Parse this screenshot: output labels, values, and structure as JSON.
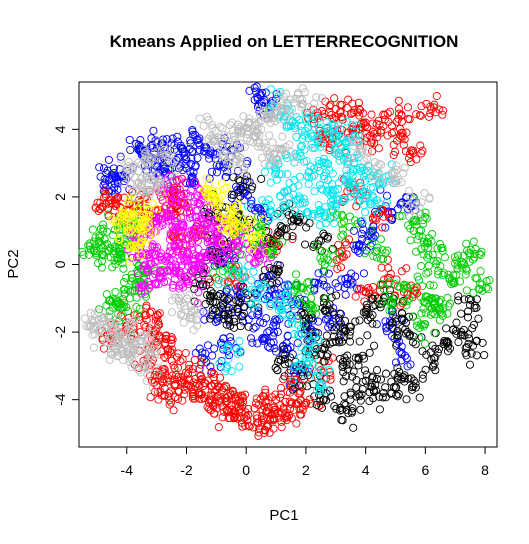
{
  "chart_data": {
    "type": "scatter",
    "title": "Kmeans Applied on LETTERRECOGNITION",
    "xlabel": "PC1",
    "ylabel": "PC2",
    "xlim": [
      -5.6,
      8.4
    ],
    "ylim": [
      -5.4,
      5.4
    ],
    "x_ticks": [
      "-4",
      "-2",
      "0",
      "2",
      "4",
      "6",
      "8"
    ],
    "y_ticks": [
      "-4",
      "-2",
      "0",
      "2",
      "4"
    ],
    "x_tick_values": [
      -4,
      -2,
      0,
      2,
      4,
      6,
      8
    ],
    "y_tick_values": [
      -4,
      -2,
      0,
      2,
      4
    ],
    "marker": "open-circle",
    "legend": "none",
    "grid": false,
    "series": [
      {
        "color": "#0000FF",
        "points": [
          [
            -4.6,
            2.5
          ],
          [
            -4.4,
            2.4
          ],
          [
            -4.2,
            2.6
          ],
          [
            -3.5,
            3.3
          ],
          [
            -3.2,
            3.5
          ],
          [
            -2.8,
            3.6
          ],
          [
            -2.4,
            3.4
          ],
          [
            -2,
            3.1
          ],
          [
            -1.6,
            3.6
          ],
          [
            -1.2,
            3.3
          ],
          [
            -0.9,
            2.9
          ],
          [
            -0.5,
            3.4
          ],
          [
            -2.6,
            2.8
          ],
          [
            -3,
            2.9
          ],
          [
            -1.8,
            2.6
          ],
          [
            0.5,
            5
          ],
          [
            0.6,
            4.8
          ],
          [
            -0.3,
            -0.8
          ],
          [
            0.2,
            -1.5
          ],
          [
            0.6,
            -2.2
          ],
          [
            1,
            -1.8
          ],
          [
            1.4,
            -2.5
          ],
          [
            1.8,
            -1.2
          ],
          [
            2.2,
            -2
          ],
          [
            -0.6,
            -2.4
          ],
          [
            -1,
            -1.6
          ],
          [
            0.8,
            -0.6
          ],
          [
            1.2,
            -0.9
          ],
          [
            2.6,
            -0.6
          ],
          [
            3,
            -1.6
          ],
          [
            3.4,
            -0.4
          ],
          [
            3.8,
            0.6
          ],
          [
            4.2,
            1
          ],
          [
            4.6,
            1.6
          ],
          [
            4.8,
            -1.8
          ],
          [
            5.2,
            -2.6
          ],
          [
            5.4,
            1.8
          ],
          [
            -0.2,
            2.2
          ],
          [
            0.3,
            1.6
          ],
          [
            1.6,
            -3.2
          ],
          [
            -1.4,
            -2.8
          ],
          [
            -0.7,
            0.2
          ]
        ]
      },
      {
        "color": "#FF0000",
        "points": [
          [
            -4.8,
            1.7
          ],
          [
            -4.4,
            1.9
          ],
          [
            -4,
            1.6
          ],
          [
            -3.6,
            1.9
          ],
          [
            -3.2,
            1.6
          ],
          [
            -2.8,
            1.9
          ],
          [
            -2.4,
            2.0
          ],
          [
            -2.2,
            1.6
          ],
          [
            -3.4,
            -1.5
          ],
          [
            -3,
            -1.9
          ],
          [
            -2.7,
            -2.2
          ],
          [
            -2.5,
            -2.6
          ],
          [
            -3.2,
            -2.7
          ],
          [
            -2.8,
            -3.1
          ],
          [
            -2.4,
            -3.4
          ],
          [
            -2,
            -3.6
          ],
          [
            -1.6,
            -3.8
          ],
          [
            -1.2,
            -4.0
          ],
          [
            -0.8,
            -4.2
          ],
          [
            -0.4,
            -4.4
          ],
          [
            0,
            -4.5
          ],
          [
            0.4,
            -4.7
          ],
          [
            0.8,
            -4.6
          ],
          [
            1.2,
            -4.4
          ],
          [
            -1.8,
            -3.2
          ],
          [
            -1.4,
            -3.5
          ],
          [
            -1,
            -3.7
          ],
          [
            -0.6,
            -3.9
          ],
          [
            -0.2,
            -4.1
          ],
          [
            0.6,
            -4.2
          ],
          [
            1,
            -4.0
          ],
          [
            1.6,
            -4.3
          ],
          [
            2,
            -4.1
          ],
          [
            -2.6,
            -3.9
          ],
          [
            -3.1,
            -3.5
          ],
          [
            -4,
            -1.8
          ],
          [
            -4.6,
            -2.2
          ],
          [
            2.4,
            4.4
          ],
          [
            3,
            4.6
          ],
          [
            3.6,
            4.5
          ],
          [
            4,
            4.2
          ],
          [
            4.6,
            4.1
          ],
          [
            5.2,
            4.4
          ],
          [
            6.2,
            4.6
          ],
          [
            2.8,
            3.7
          ],
          [
            3.4,
            3.9
          ],
          [
            4.2,
            3.6
          ],
          [
            5.2,
            3.9
          ],
          [
            5.6,
            3.3
          ],
          [
            3.6,
            2.2
          ],
          [
            4.4,
            1.5
          ],
          [
            4.8,
            -0.4
          ],
          [
            5.4,
            -0.9
          ],
          [
            3.2,
            0.4
          ],
          [
            4,
            -0.8
          ],
          [
            -1.4,
            1.0
          ],
          [
            -0.5,
            -0.4
          ],
          [
            1.5,
            -3.6
          ],
          [
            2.6,
            -3.2
          ],
          [
            -2.2,
            0.8
          ],
          [
            1.0,
            0.6
          ]
        ]
      },
      {
        "color": "#000000",
        "points": [
          [
            -1.6,
            -0.4
          ],
          [
            -1.2,
            -1.0
          ],
          [
            -0.8,
            -1.3
          ],
          [
            -0.4,
            -1.6
          ],
          [
            0,
            -1.0
          ],
          [
            -1.2,
            0.3
          ],
          [
            -0.6,
            0.6
          ],
          [
            -0.2,
            1.3
          ],
          [
            0.6,
            0.6
          ],
          [
            -1.0,
            1.6
          ],
          [
            -0.1,
            2.3
          ],
          [
            1.3,
            -2.8
          ],
          [
            1.9,
            -3.3
          ],
          [
            2.3,
            -2.6
          ],
          [
            2.9,
            -2.3
          ],
          [
            3.4,
            -3.1
          ],
          [
            3.9,
            -2.7
          ],
          [
            4.2,
            -3.5
          ],
          [
            4.6,
            -3.8
          ],
          [
            5.1,
            -3.3
          ],
          [
            5.6,
            -3.6
          ],
          [
            5.4,
            -2.0
          ],
          [
            6.2,
            -2.8
          ],
          [
            6.7,
            -2.3
          ],
          [
            7.2,
            -2.0
          ],
          [
            7.6,
            -2.4
          ],
          [
            7.5,
            -1.2
          ],
          [
            2.6,
            -4.0
          ],
          [
            3.2,
            -4.3
          ],
          [
            3.8,
            -3.9
          ],
          [
            2.1,
            -1.6
          ],
          [
            2.7,
            -1.2
          ],
          [
            3.3,
            -1.9
          ],
          [
            4,
            -1.4
          ],
          [
            4.6,
            -1.1
          ],
          [
            5.2,
            -1.6
          ],
          [
            1.2,
            1.1
          ],
          [
            1.8,
            1.4
          ],
          [
            2.4,
            0.6
          ],
          [
            0.9,
            -0.3
          ]
        ]
      },
      {
        "color": "#00CC00",
        "points": [
          [
            -5.1,
            0.4
          ],
          [
            -4.9,
            0.8
          ],
          [
            -4.6,
            0.4
          ],
          [
            -4.3,
            1.1
          ],
          [
            -4.1,
            0.6
          ],
          [
            -3.8,
            1.2
          ],
          [
            -4.5,
            -1.1
          ],
          [
            -4.2,
            -1.3
          ],
          [
            -3.9,
            -1.0
          ],
          [
            -3.6,
            -0.6
          ],
          [
            -3.3,
            -0.2
          ],
          [
            -4.2,
            0.2
          ],
          [
            -3.8,
            -0.4
          ],
          [
            -0.6,
            -0.3
          ],
          [
            -0.2,
            0.9
          ],
          [
            0.4,
            1.1
          ],
          [
            0.9,
            0.4
          ],
          [
            5.6,
            1.3
          ],
          [
            5.8,
            1.0
          ],
          [
            6.1,
            0.5
          ],
          [
            6.4,
            0.1
          ],
          [
            6.8,
            -0.4
          ],
          [
            7.2,
            0.0
          ],
          [
            7.5,
            0.3
          ],
          [
            7.9,
            -0.6
          ],
          [
            6.2,
            -1.0
          ],
          [
            6.6,
            -1.3
          ],
          [
            5.4,
            -0.7
          ],
          [
            5.9,
            -1.8
          ],
          [
            6.3,
            -1.2
          ],
          [
            4.8,
            -0.9
          ],
          [
            4.4,
            0.5
          ],
          [
            3.2,
            1.2
          ],
          [
            2.6,
            0.2
          ],
          [
            1.9,
            -0.7
          ],
          [
            2.2,
            -1.2
          ]
        ]
      },
      {
        "color": "#00E5EE",
        "points": [
          [
            1.2,
            4.6
          ],
          [
            1.5,
            4.1
          ],
          [
            2,
            4.3
          ],
          [
            2.4,
            3.7
          ],
          [
            1.8,
            3.3
          ],
          [
            2.6,
            3.0
          ],
          [
            3.1,
            3.3
          ],
          [
            3.6,
            3.0
          ],
          [
            4,
            2.7
          ],
          [
            4.5,
            2.4
          ],
          [
            2.2,
            2.6
          ],
          [
            2.8,
            2.2
          ],
          [
            3.3,
            2.5
          ],
          [
            3.8,
            2.1
          ],
          [
            4.3,
            1.8
          ],
          [
            1,
            2.8
          ],
          [
            1.4,
            2.2
          ],
          [
            1.8,
            1.8
          ],
          [
            2.4,
            1.5
          ],
          [
            3,
            1.7
          ],
          [
            0.8,
            1.6
          ],
          [
            1.1,
            -1.0
          ],
          [
            1.5,
            -1.6
          ],
          [
            2.1,
            -2.3
          ],
          [
            0.4,
            -0.8
          ],
          [
            -0.2,
            -0.4
          ],
          [
            -0.6,
            -2.8
          ],
          [
            1.9,
            -3.0
          ],
          [
            2.5,
            -3.6
          ],
          [
            3.5,
            3.7
          ],
          [
            2.9,
            4.0
          ]
        ]
      },
      {
        "color": "#FF00FF",
        "points": [
          [
            -3.6,
            0.3
          ],
          [
            -3.3,
            -0.1
          ],
          [
            -3,
            0.4
          ],
          [
            -2.7,
            0.1
          ],
          [
            -2.4,
            0.6
          ],
          [
            -2.1,
            0.2
          ],
          [
            -1.8,
            0.7
          ],
          [
            -1.5,
            0.2
          ],
          [
            -3.4,
            0.9
          ],
          [
            -3.0,
            1.2
          ],
          [
            -2.6,
            1.3
          ],
          [
            -2.2,
            1.1
          ],
          [
            -1.8,
            1.4
          ],
          [
            -1.4,
            1.2
          ],
          [
            -1.0,
            0.9
          ],
          [
            -3.2,
            -0.6
          ],
          [
            -2.8,
            -0.4
          ],
          [
            -2.4,
            -0.2
          ],
          [
            -2.0,
            -0.5
          ],
          [
            -1.6,
            -0.1
          ],
          [
            -1.2,
            0.5
          ],
          [
            -0.8,
            0.4
          ],
          [
            -0.4,
            1.0
          ],
          [
            0,
            0.6
          ],
          [
            0.4,
            0.3
          ],
          [
            -2.6,
            2.3
          ],
          [
            -2.0,
            2.1
          ],
          [
            -1.5,
            1.9
          ]
        ]
      },
      {
        "color": "#FFFF00",
        "points": [
          [
            -4.2,
            1.4
          ],
          [
            -3.8,
            1.5
          ],
          [
            -3.5,
            1.0
          ],
          [
            -3.7,
            0.5
          ],
          [
            -3.3,
            1.4
          ],
          [
            -4.0,
            1.1
          ],
          [
            -1.2,
            2.2
          ],
          [
            -0.9,
            1.9
          ],
          [
            -0.5,
            1.5
          ],
          [
            -0.2,
            1.1
          ],
          [
            0.2,
            0.8
          ],
          [
            -0.7,
            1.2
          ]
        ]
      },
      {
        "color": "#BEBEBE",
        "points": [
          [
            -5.2,
            -1.8
          ],
          [
            -4.9,
            -2.0
          ],
          [
            -4.6,
            -1.7
          ],
          [
            -4.3,
            -2.3
          ],
          [
            -4.0,
            -2.0
          ],
          [
            -3.8,
            -2.4
          ],
          [
            -3.5,
            -2.1
          ],
          [
            -3.2,
            -2.6
          ],
          [
            -4.4,
            -2.6
          ],
          [
            -3.9,
            -2.8
          ],
          [
            -3.4,
            -3.0
          ],
          [
            -3.8,
            2.8
          ],
          [
            -3.4,
            3.1
          ],
          [
            -3.0,
            2.6
          ],
          [
            -2.6,
            3.2
          ],
          [
            -3.2,
            2.2
          ],
          [
            -3.6,
            2.4
          ],
          [
            -0.8,
            3.5
          ],
          [
            -0.4,
            3.8
          ],
          [
            -0.1,
            4.0
          ],
          [
            0.3,
            4.1
          ],
          [
            0.7,
            4.3
          ],
          [
            1.0,
            4.5
          ],
          [
            1.4,
            4.7
          ],
          [
            1.8,
            4.9
          ],
          [
            0.4,
            3.6
          ],
          [
            0.8,
            3.2
          ],
          [
            1.2,
            3.4
          ],
          [
            -0.3,
            3.1
          ],
          [
            -1.2,
            3.8
          ],
          [
            5.1,
            2.5
          ],
          [
            5.6,
            1.9
          ],
          [
            4.4,
            2.9
          ],
          [
            3.8,
            3.4
          ],
          [
            -2.2,
            -1.2
          ],
          [
            -1.8,
            -1.6
          ]
        ]
      }
    ]
  }
}
